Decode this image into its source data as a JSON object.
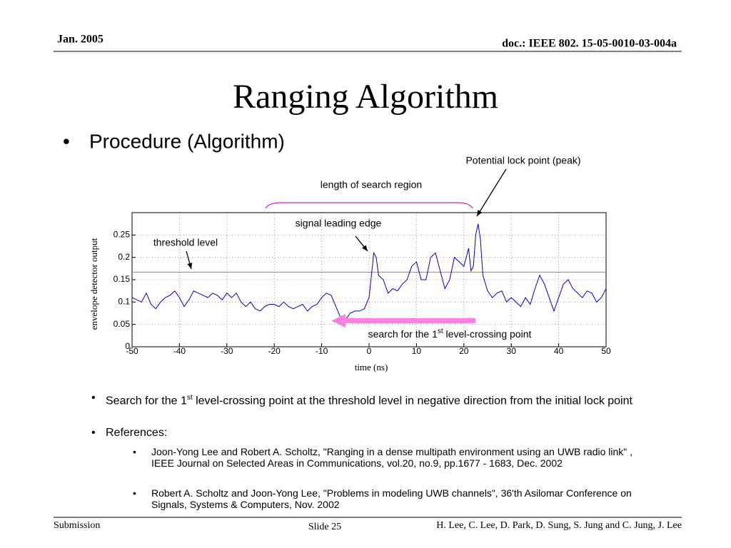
{
  "header": {
    "date": "Jan. 2005",
    "doc": "doc.: IEEE 802. 15-05-0010-03-004a"
  },
  "title": "Ranging Algorithm",
  "bullet": "Procedure (Algorithm)",
  "chart_data": {
    "type": "line",
    "ylabel": "envelope detector output",
    "xlabel": "time (ns)",
    "annotations": {
      "peak": "Potential lock point (peak)",
      "region": "length of search region",
      "edge": "signal leading edge",
      "threshold": "threshold level",
      "search_pre": "search for the 1",
      "search_sup": "st",
      "search_post": " level-crossing point"
    },
    "x": [
      -50,
      -49,
      -48,
      -47,
      -46,
      -45,
      -44,
      -43,
      -42,
      -41,
      -40,
      -39,
      -38,
      -37,
      -36,
      -35,
      -34,
      -33,
      -32,
      -31,
      -30,
      -29,
      -28,
      -27,
      -26,
      -25,
      -24,
      -23,
      -22,
      -21,
      -20,
      -19,
      -18,
      -17,
      -16,
      -15,
      -14,
      -13,
      -12,
      -11,
      -10,
      -9,
      -8,
      -7,
      -6,
      -5,
      -4,
      -3,
      -2,
      -1,
      0,
      0.5,
      1,
      1.5,
      2,
      3,
      4,
      5,
      6,
      7,
      8,
      9,
      10,
      11,
      12,
      13,
      14,
      15,
      16,
      17,
      18,
      19,
      20,
      21,
      21.5,
      22,
      22.5,
      23,
      23.5,
      24,
      25,
      26,
      27,
      28,
      29,
      30,
      31,
      32,
      33,
      34,
      35,
      36,
      37,
      38,
      39,
      40,
      41,
      42,
      43,
      44,
      45,
      46,
      47,
      48,
      49,
      50
    ],
    "series": [
      {
        "color": "#0000cc",
        "values": [
          0.11,
          0.105,
          0.1,
          0.12,
          0.095,
          0.085,
          0.1,
          0.11,
          0.115,
          0.125,
          0.11,
          0.09,
          0.105,
          0.125,
          0.12,
          0.115,
          0.11,
          0.12,
          0.115,
          0.105,
          0.12,
          0.11,
          0.12,
          0.1,
          0.09,
          0.1,
          0.085,
          0.08,
          0.09,
          0.095,
          0.095,
          0.09,
          0.1,
          0.09,
          0.085,
          0.09,
          0.095,
          0.08,
          0.09,
          0.095,
          0.11,
          0.12,
          0.115,
          0.09,
          0.065,
          0.06,
          0.075,
          0.08,
          0.08,
          0.085,
          0.11,
          0.16,
          0.21,
          0.2,
          0.16,
          0.15,
          0.12,
          0.13,
          0.125,
          0.14,
          0.15,
          0.18,
          0.19,
          0.15,
          0.15,
          0.2,
          0.21,
          0.17,
          0.13,
          0.15,
          0.2,
          0.19,
          0.18,
          0.22,
          0.17,
          0.18,
          0.25,
          0.275,
          0.24,
          0.16,
          0.125,
          0.11,
          0.12,
          0.125,
          0.1,
          0.11,
          0.1,
          0.09,
          0.11,
          0.095,
          0.13,
          0.16,
          0.14,
          0.11,
          0.08,
          0.11,
          0.14,
          0.15,
          0.13,
          0.12,
          0.11,
          0.125,
          0.12,
          0.1,
          0.11,
          0.13
        ]
      }
    ],
    "threshold": 0.167,
    "threshold_color": "#e06060",
    "xlim": [
      -50,
      50
    ],
    "xticks": [
      -50,
      -40,
      -30,
      -20,
      -10,
      0,
      10,
      20,
      30,
      40,
      50
    ],
    "ylim": [
      0,
      0.3
    ],
    "yticks": [
      0,
      0.05,
      0.1,
      0.15,
      0.2,
      0.25
    ],
    "grid": true
  },
  "bullets": [
    {
      "pre": "Search for the 1",
      "sup": "st",
      "post": " level-crossing point at the threshold level in negative direction from the initial lock point"
    },
    {
      "text": "References:"
    }
  ],
  "references": [
    "Joon-Yong Lee and Robert A. Scholtz, \"Ranging in a dense multipath environment using an UWB radio link\" , IEEE Journal on Selected Areas in Communications, vol.20, no.9, pp.1677 - 1683, Dec. 2002",
    "Robert A. Scholtz and Joon-Yong Lee, \"Problems in modeling UWB channels\", 36'th Asilomar Conference on Signals, Systems & Computers, Nov. 2002"
  ],
  "footer": {
    "left": "Submission",
    "center": "Slide 25",
    "right": "H. Lee, C. Lee, D. Park, D. Sung, S. Jung and C. Jung, J. Lee"
  }
}
